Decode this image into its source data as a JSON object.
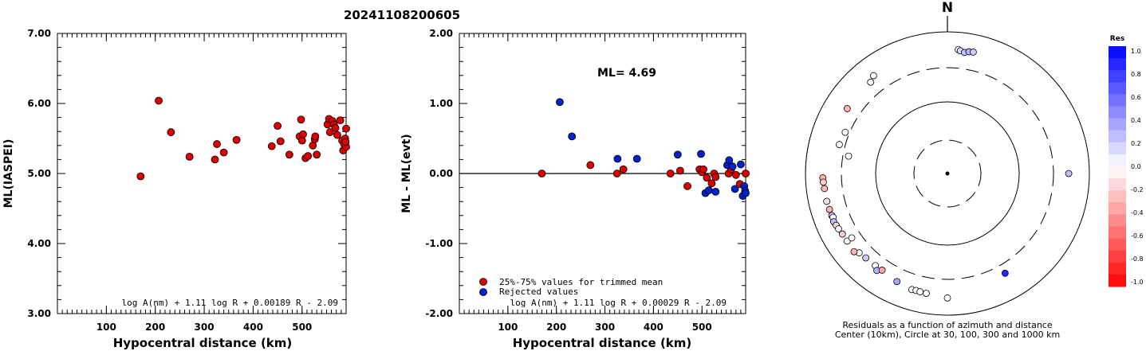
{
  "title": "20241108200605",
  "chart_data": [
    {
      "type": "scatter",
      "ylabel": "ML(IASPEI)",
      "xlabel": "Hypocentral distance (km)",
      "xlim": [
        0,
        590
      ],
      "ylim": [
        3.0,
        7.0
      ],
      "xticks": [
        "100",
        "200",
        "300",
        "400",
        "500"
      ],
      "yticks": [
        "3.00",
        "4.00",
        "5.00",
        "6.00",
        "7.00"
      ],
      "formula": "log A(nm) + 1.11 log R + 0.00189 R - 2.09",
      "color": "#dd0000",
      "points": [
        [
          170,
          4.96
        ],
        [
          207,
          6.04
        ],
        [
          232,
          5.59
        ],
        [
          270,
          5.24
        ],
        [
          322,
          5.2
        ],
        [
          326,
          5.42
        ],
        [
          340,
          5.3
        ],
        [
          366,
          5.48
        ],
        [
          438,
          5.39
        ],
        [
          450,
          5.68
        ],
        [
          456,
          5.46
        ],
        [
          474,
          5.27
        ],
        [
          495,
          5.53
        ],
        [
          498,
          5.77
        ],
        [
          500,
          5.47
        ],
        [
          502,
          5.56
        ],
        [
          507,
          5.22
        ],
        [
          512,
          5.25
        ],
        [
          522,
          5.4
        ],
        [
          526,
          5.49
        ],
        [
          527,
          5.53
        ],
        [
          530,
          5.27
        ],
        [
          552,
          5.7
        ],
        [
          555,
          5.78
        ],
        [
          557,
          5.59
        ],
        [
          562,
          5.75
        ],
        [
          565,
          5.7
        ],
        [
          568,
          5.65
        ],
        [
          572,
          5.55
        ],
        [
          578,
          5.76
        ],
        [
          582,
          5.47
        ],
        [
          584,
          5.33
        ],
        [
          586,
          5.42
        ],
        [
          588,
          5.5
        ],
        [
          590,
          5.64
        ],
        [
          590,
          5.38
        ],
        [
          589,
          5.45
        ]
      ]
    },
    {
      "type": "scatter",
      "ylabel": "ML - ML(evt)",
      "xlabel": "Hypocentral distance (km)",
      "xlim": [
        0,
        590
      ],
      "ylim": [
        -2.0,
        2.0
      ],
      "xticks": [
        "100",
        "200",
        "300",
        "400",
        "500"
      ],
      "yticks": [
        "-2.00",
        "-1.00",
        "0.00",
        "1.00",
        "2.00"
      ],
      "annotation": "ML= 4.69",
      "formula": "log A(nm) + 1.11 log R + 0.00029 R - 2.09",
      "legend": [
        {
          "label": "25%-75% values for trimmed mean",
          "color": "#dd0000"
        },
        {
          "label": "Rejected values",
          "color": "#0022cc"
        }
      ],
      "accepted": [
        [
          170,
          0.0
        ],
        [
          270,
          0.12
        ],
        [
          325,
          0.0
        ],
        [
          338,
          0.06
        ],
        [
          435,
          0.0
        ],
        [
          455,
          0.04
        ],
        [
          470,
          -0.18
        ],
        [
          495,
          0.06
        ],
        [
          500,
          0.02
        ],
        [
          503,
          0.06
        ],
        [
          510,
          -0.06
        ],
        [
          520,
          -0.14
        ],
        [
          525,
          0.0
        ],
        [
          528,
          -0.05
        ],
        [
          555,
          0.0
        ],
        [
          560,
          0.06
        ],
        [
          570,
          -0.02
        ],
        [
          578,
          -0.15
        ],
        [
          590,
          0.0
        ]
      ],
      "rejected": [
        [
          207,
          1.02
        ],
        [
          232,
          0.53
        ],
        [
          326,
          0.21
        ],
        [
          366,
          0.21
        ],
        [
          450,
          0.27
        ],
        [
          498,
          0.28
        ],
        [
          507,
          -0.28
        ],
        [
          514,
          -0.24
        ],
        [
          528,
          -0.26
        ],
        [
          552,
          0.12
        ],
        [
          556,
          0.19
        ],
        [
          563,
          0.1
        ],
        [
          568,
          -0.22
        ],
        [
          580,
          0.13
        ],
        [
          584,
          -0.32
        ],
        [
          587,
          -0.18
        ],
        [
          589,
          -0.25
        ],
        [
          590,
          -0.28
        ]
      ]
    },
    {
      "type": "scatter",
      "north_label": "N",
      "caption_line1": "Residuals as a function of azimuth and distance",
      "caption_line2": "Center (10km), Circle at 30, 100, 300 and 1000 km",
      "colorbar_title": "Res",
      "colorbar_labels": [
        "1.0",
        "0.8",
        "0.6",
        "0.4",
        "0.2",
        "0.0",
        "-0.2",
        "-0.4",
        "-0.6",
        "-0.8",
        "-1.0"
      ],
      "stations": [
        {
          "az": 5,
          "dist": 560,
          "res": 0.0
        },
        {
          "az": 6,
          "dist": 540,
          "res": 0.15
        },
        {
          "az": 8,
          "dist": 520,
          "res": 0.25
        },
        {
          "az": 10,
          "dist": 545,
          "res": 0.3
        },
        {
          "az": 12,
          "dist": 555,
          "res": 0.2
        },
        {
          "az": 90,
          "dist": 500,
          "res": 0.25
        },
        {
          "az": 323,
          "dist": 525,
          "res": 0.0
        },
        {
          "az": 320,
          "dist": 470,
          "res": 0.0
        },
        {
          "az": 303,
          "dist": 470,
          "res": -0.3
        },
        {
          "az": 292,
          "dist": 345,
          "res": 0.0
        },
        {
          "az": 285,
          "dist": 365,
          "res": 0.0
        },
        {
          "az": 280,
          "dist": 250,
          "res": 0.0
        },
        {
          "az": 268,
          "dist": 560,
          "res": -0.3
        },
        {
          "az": 266,
          "dist": 555,
          "res": -0.2
        },
        {
          "az": 263,
          "dist": 545,
          "res": -0.3
        },
        {
          "az": 257,
          "dist": 545,
          "res": -0.1
        },
        {
          "az": 253,
          "dist": 535,
          "res": -0.3
        },
        {
          "az": 250,
          "dist": 530,
          "res": 0.2
        },
        {
          "az": 249,
          "dist": 520,
          "res": 0.0
        },
        {
          "az": 247,
          "dist": 540,
          "res": 0.25
        },
        {
          "az": 245,
          "dist": 525,
          "res": -0.15
        },
        {
          "az": 243,
          "dist": 515,
          "res": 0.0
        },
        {
          "az": 240,
          "dist": 500,
          "res": -0.2
        },
        {
          "az": 236,
          "dist": 495,
          "res": 0.0
        },
        {
          "az": 236,
          "dist": 410,
          "res": 0.0
        },
        {
          "az": 228,
          "dist": 460,
          "res": 0.0
        },
        {
          "az": 230,
          "dist": 510,
          "res": -0.3
        },
        {
          "az": 224,
          "dist": 440,
          "res": 0.2
        },
        {
          "az": 218,
          "dist": 435,
          "res": 0.0
        },
        {
          "az": 216,
          "dist": 480,
          "res": 0.3
        },
        {
          "az": 214,
          "dist": 430,
          "res": -0.35
        },
        {
          "az": 205,
          "dist": 470,
          "res": 0.35
        },
        {
          "az": 197,
          "dist": 505,
          "res": 0.0
        },
        {
          "az": 195,
          "dist": 500,
          "res": 0.0
        },
        {
          "az": 193,
          "dist": 505,
          "res": 0.0
        },
        {
          "az": 190,
          "dist": 510,
          "res": 0.0
        },
        {
          "az": 180,
          "dist": 560,
          "res": 0.0
        },
        {
          "az": 150,
          "dist": 410,
          "res": 0.85
        }
      ]
    }
  ]
}
